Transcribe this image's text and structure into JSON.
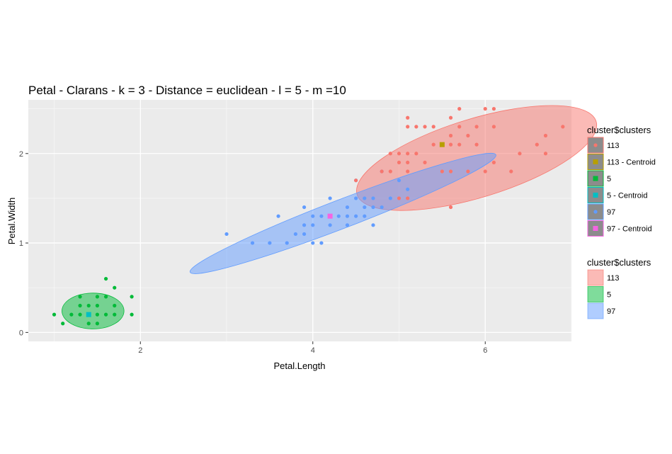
{
  "chart_data": {
    "type": "scatter",
    "title": "Petal - Clarans - k = 3 - Distance = euclidean - l = 5 - m =10",
    "xlabel": "Petal.Length",
    "ylabel": "Petal.Width",
    "xlim": [
      0.7,
      7.0
    ],
    "ylim": [
      -0.1,
      2.6
    ],
    "x_ticks": [
      2,
      4,
      6
    ],
    "y_ticks": [
      0,
      1,
      2
    ],
    "grid": true,
    "legend_position": "right",
    "series": [
      {
        "name": "5",
        "color": "#00BA38",
        "points": [
          [
            1.0,
            0.2
          ],
          [
            1.1,
            0.1
          ],
          [
            1.2,
            0.2
          ],
          [
            1.3,
            0.2
          ],
          [
            1.3,
            0.3
          ],
          [
            1.3,
            0.4
          ],
          [
            1.4,
            0.1
          ],
          [
            1.4,
            0.2
          ],
          [
            1.4,
            0.3
          ],
          [
            1.5,
            0.1
          ],
          [
            1.5,
            0.2
          ],
          [
            1.5,
            0.3
          ],
          [
            1.5,
            0.4
          ],
          [
            1.6,
            0.2
          ],
          [
            1.6,
            0.4
          ],
          [
            1.6,
            0.6
          ],
          [
            1.7,
            0.2
          ],
          [
            1.7,
            0.3
          ],
          [
            1.7,
            0.5
          ],
          [
            1.9,
            0.2
          ],
          [
            1.9,
            0.4
          ]
        ]
      },
      {
        "name": "97",
        "color": "#619CFF",
        "points": [
          [
            3.0,
            1.1
          ],
          [
            3.3,
            1.0
          ],
          [
            3.5,
            1.0
          ],
          [
            3.6,
            1.3
          ],
          [
            3.7,
            1.0
          ],
          [
            3.8,
            1.1
          ],
          [
            3.9,
            1.1
          ],
          [
            3.9,
            1.2
          ],
          [
            3.9,
            1.4
          ],
          [
            4.0,
            1.0
          ],
          [
            4.0,
            1.2
          ],
          [
            4.0,
            1.3
          ],
          [
            4.1,
            1.0
          ],
          [
            4.1,
            1.3
          ],
          [
            4.2,
            1.2
          ],
          [
            4.2,
            1.5
          ],
          [
            4.3,
            1.3
          ],
          [
            4.4,
            1.2
          ],
          [
            4.4,
            1.3
          ],
          [
            4.4,
            1.4
          ],
          [
            4.5,
            1.3
          ],
          [
            4.5,
            1.5
          ],
          [
            4.5,
            1.7
          ],
          [
            4.6,
            1.3
          ],
          [
            4.6,
            1.4
          ],
          [
            4.6,
            1.5
          ],
          [
            4.7,
            1.2
          ],
          [
            4.7,
            1.4
          ],
          [
            4.7,
            1.5
          ],
          [
            4.8,
            1.4
          ],
          [
            4.8,
            1.8
          ],
          [
            4.9,
            1.5
          ],
          [
            5.0,
            1.7
          ],
          [
            5.1,
            1.6
          ]
        ]
      },
      {
        "name": "113",
        "color": "#F8766D",
        "points": [
          [
            4.5,
            1.7
          ],
          [
            4.8,
            1.8
          ],
          [
            4.9,
            1.8
          ],
          [
            4.9,
            2.0
          ],
          [
            5.0,
            1.5
          ],
          [
            5.0,
            1.9
          ],
          [
            5.0,
            2.0
          ],
          [
            5.1,
            1.5
          ],
          [
            5.1,
            1.8
          ],
          [
            5.1,
            1.9
          ],
          [
            5.1,
            2.0
          ],
          [
            5.1,
            2.3
          ],
          [
            5.1,
            2.4
          ],
          [
            5.2,
            2.0
          ],
          [
            5.2,
            2.3
          ],
          [
            5.3,
            1.9
          ],
          [
            5.3,
            2.3
          ],
          [
            5.4,
            2.1
          ],
          [
            5.4,
            2.3
          ],
          [
            5.5,
            1.8
          ],
          [
            5.5,
            2.1
          ],
          [
            5.6,
            1.4
          ],
          [
            5.6,
            1.8
          ],
          [
            5.6,
            2.1
          ],
          [
            5.6,
            2.2
          ],
          [
            5.6,
            2.4
          ],
          [
            5.7,
            2.1
          ],
          [
            5.7,
            2.3
          ],
          [
            5.7,
            2.5
          ],
          [
            5.8,
            1.8
          ],
          [
            5.8,
            2.2
          ],
          [
            5.9,
            2.1
          ],
          [
            5.9,
            2.3
          ],
          [
            6.0,
            1.8
          ],
          [
            6.0,
            2.5
          ],
          [
            6.1,
            1.9
          ],
          [
            6.1,
            2.3
          ],
          [
            6.1,
            2.5
          ],
          [
            6.3,
            1.8
          ],
          [
            6.4,
            2.0
          ],
          [
            6.6,
            2.1
          ],
          [
            6.7,
            2.0
          ],
          [
            6.7,
            2.2
          ],
          [
            6.9,
            2.3
          ]
        ]
      }
    ],
    "centroids": [
      {
        "name": "113 - Centroid",
        "color": "#B79F00",
        "x": 5.5,
        "y": 2.1
      },
      {
        "name": "5 - Centroid",
        "color": "#00BFC4",
        "x": 1.4,
        "y": 0.2
      },
      {
        "name": "97 - Centroid",
        "color": "#F564E3",
        "x": 4.2,
        "y": 1.3
      }
    ],
    "ellipses": [
      {
        "name": "113",
        "fill": "#F8766D",
        "stroke": "#F8766D",
        "cx": 5.9,
        "cy": 1.95,
        "rx": 1.45,
        "ry": 0.44,
        "angle_deg": -17
      },
      {
        "name": "97",
        "fill": "#619CFF",
        "stroke": "#619CFF",
        "cx": 4.35,
        "cy": 1.33,
        "rx": 1.9,
        "ry": 0.16,
        "angle_deg": -21
      },
      {
        "name": "5",
        "fill": "#00BA38",
        "stroke": "#00BA38",
        "cx": 1.45,
        "cy": 0.24,
        "rx": 0.36,
        "ry": 0.2,
        "angle_deg": 0
      }
    ],
    "legend_color": {
      "title": "cluster$clusters",
      "entries": [
        {
          "label": "113",
          "color": "#F8766D",
          "shape": "circle"
        },
        {
          "label": "113 - Centroid",
          "color": "#B79F00",
          "shape": "square"
        },
        {
          "label": "5",
          "color": "#00BA38",
          "shape": "square"
        },
        {
          "label": "5 - Centroid",
          "color": "#00BFC4",
          "shape": "square"
        },
        {
          "label": "97",
          "color": "#619CFF",
          "shape": "circle"
        },
        {
          "label": "97 - Centroid",
          "color": "#F564E3",
          "shape": "square"
        }
      ]
    },
    "legend_fill": {
      "title": "cluster$clusters",
      "entries": [
        {
          "label": "113",
          "color": "#F8766D"
        },
        {
          "label": "5",
          "color": "#00BA38"
        },
        {
          "label": "97",
          "color": "#619CFF"
        }
      ]
    }
  }
}
